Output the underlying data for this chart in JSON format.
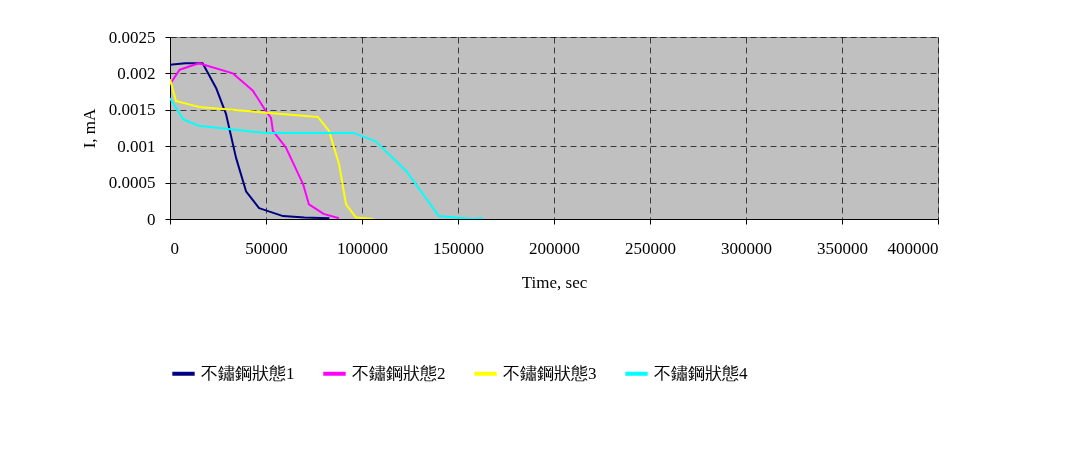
{
  "chart_data": {
    "type": "line",
    "xlabel": "Time, sec",
    "ylabel": "I, mA",
    "xlim": [
      0,
      400000
    ],
    "xticks": [
      0,
      50000,
      100000,
      150000,
      200000,
      250000,
      300000,
      350000,
      400000
    ],
    "ylim": [
      0,
      0.0025
    ],
    "yticks": [
      0,
      0.0005,
      0.001,
      0.0015,
      0.002,
      0.0025
    ],
    "grid": true,
    "legend": "bottom",
    "marker": "none",
    "line_style": "solid",
    "series": [
      {
        "name": "不鏽鋼狀態1",
        "color": "#000080",
        "x": [
          0,
          8000,
          17000,
          24000,
          29200,
          34400,
          39600,
          46400,
          58900,
          70000,
          83000
        ],
        "values": [
          0.00212,
          0.00214,
          0.00214,
          0.0018,
          0.00144,
          0.00084,
          0.00038,
          0.00015,
          4e-05,
          2e-05,
          1e-05
        ]
      },
      {
        "name": "不鏽鋼狀態2",
        "color": "#ff00ff",
        "x": [
          0,
          5000,
          15000,
          32800,
          43200,
          50000,
          52600,
          53600,
          60400,
          69300,
          72400,
          80000,
          88000
        ],
        "values": [
          0.00185,
          0.00205,
          0.00214,
          0.002,
          0.00176,
          0.00148,
          0.00139,
          0.00121,
          0.00098,
          0.00048,
          0.0002,
          7e-05,
          1e-05
        ]
      },
      {
        "name": "不鏽鋼狀態3",
        "color": "#ffff00",
        "x": [
          0,
          3100,
          15000,
          50000,
          77100,
          82800,
          88000,
          91700,
          96900,
          106000
        ],
        "values": [
          0.00192,
          0.00162,
          0.00154,
          0.00146,
          0.0014,
          0.00121,
          0.00076,
          0.0002,
          2e-05,
          0
        ]
      },
      {
        "name": "不鏽鋼狀態4",
        "color": "#00ffff",
        "x": [
          0,
          6800,
          15000,
          29200,
          50000,
          95800,
          107000,
          123000,
          131800,
          140000,
          157800,
          163000
        ],
        "values": [
          0.00166,
          0.00137,
          0.00128,
          0.00124,
          0.00118,
          0.00118,
          0.00107,
          0.00066,
          0.00034,
          4e-05,
          0,
          1e-05
        ]
      }
    ]
  }
}
